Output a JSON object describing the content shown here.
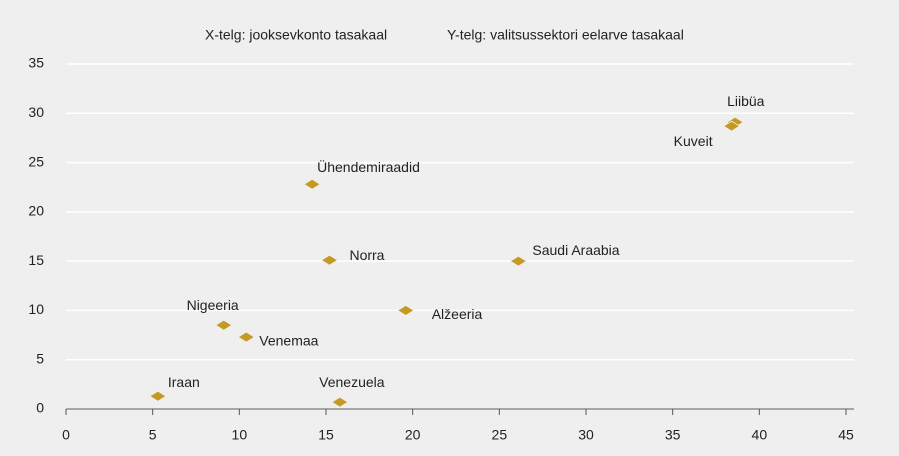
{
  "chart_data": {
    "type": "scatter",
    "x_label": "X-telg: jooksevkonto tasakaal",
    "y_label": "Y-telg: valitsussektori eelarve tasakaal",
    "labels": [
      "Liibüa",
      "Kuveit",
      "Ühendemiraadid",
      "Norra",
      "Saudi Araabia",
      "Alžeeria",
      "Nigeeria",
      "Venemaa",
      "Iraan",
      "Venezuela"
    ],
    "x": [
      38.6,
      38.4,
      14.2,
      15.2,
      26.1,
      19.6,
      9.1,
      10.4,
      5.3,
      15.8
    ],
    "y": [
      29.1,
      28.7,
      22.8,
      15.1,
      15.0,
      10.0,
      8.5,
      7.3,
      1.3,
      0.7
    ],
    "color": "#c49a22",
    "xlim": [
      0,
      45
    ],
    "xticks": [
      0,
      5,
      10,
      15,
      20,
      25,
      30,
      35,
      40,
      45
    ],
    "ylim": [
      0,
      35
    ],
    "yticks": [
      0,
      5,
      10,
      15,
      20,
      25,
      30,
      35
    ],
    "grid": true
  }
}
